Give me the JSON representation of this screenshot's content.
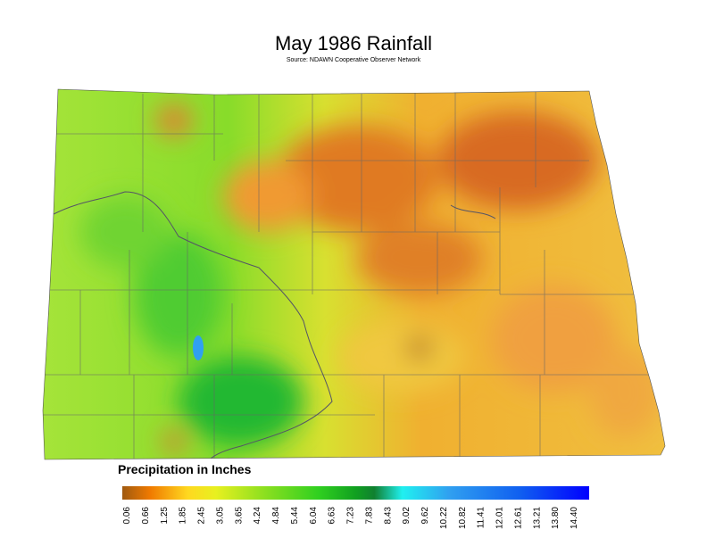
{
  "title": "May 1986 Rainfall",
  "subtitle": "Source: NDAWN Cooperative Observer Network",
  "legend": {
    "title": "Precipitation in Inches",
    "labels": [
      "0.06",
      "0.66",
      "1.25",
      "1.85",
      "2.45",
      "3.05",
      "3.65",
      "4.24",
      "4.84",
      "5.44",
      "6.04",
      "6.63",
      "7.23",
      "7.83",
      "8.43",
      "9.02",
      "9.62",
      "10.22",
      "10.82",
      "11.41",
      "12.01",
      "12.61",
      "13.21",
      "13.80",
      "14.40"
    ]
  }
}
